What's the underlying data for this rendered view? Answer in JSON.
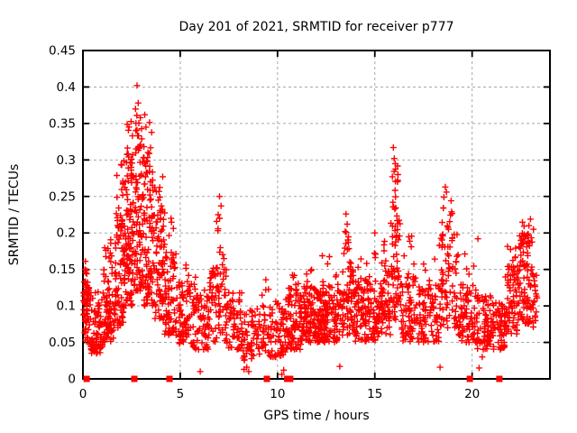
{
  "chart_data": {
    "type": "scatter",
    "title": "Day 201 of 2021, SRMTID for receiver p777",
    "xlabel": "GPS time / hours",
    "ylabel": "SRMTID / TECUs",
    "xlim": [
      0,
      24
    ],
    "ylim": [
      0,
      0.45
    ],
    "x_ticks": {
      "values": [
        0,
        5,
        10,
        15,
        20
      ],
      "labels": [
        "0",
        "5",
        "10",
        "15",
        "20"
      ]
    },
    "y_ticks": {
      "values": [
        0,
        0.05,
        0.1,
        0.15,
        0.2,
        0.25,
        0.3,
        0.35,
        0.4,
        0.45
      ],
      "labels": [
        "0",
        "0.05",
        "0.1",
        "0.15",
        "0.2",
        "0.25",
        "0.3",
        "0.35",
        "0.4",
        "0.45"
      ]
    },
    "grid": {
      "show": true,
      "style": "dashed",
      "axes": "both"
    },
    "legend_position": "none",
    "colors": {
      "marker": "#ff0000",
      "grid": "#a8a8a8",
      "axis": "#000000",
      "background": "#ffffff",
      "text": "#000000"
    },
    "series": [
      {
        "name": "SRMTID",
        "marker": "plus",
        "color": "#ff0000",
        "seed": 20212001,
        "cluster_bands_format": [
          "x_start",
          "x_end",
          "count",
          "y_min",
          "y_max",
          "skew_exponent"
        ],
        "cluster_bands": [
          [
            0.02,
            0.35,
            55,
            0.045,
            0.135,
            1.0
          ],
          [
            0.05,
            0.25,
            6,
            0.135,
            0.165,
            1.0
          ],
          [
            0.35,
            1.05,
            75,
            0.035,
            0.12,
            1.2
          ],
          [
            1.05,
            1.65,
            70,
            0.05,
            0.155,
            1.2
          ],
          [
            1.1,
            1.6,
            10,
            0.155,
            0.195,
            1.0
          ],
          [
            1.65,
            2.2,
            90,
            0.07,
            0.225,
            1.3
          ],
          [
            1.7,
            2.2,
            14,
            0.225,
            0.3,
            1.0
          ],
          [
            2.2,
            2.65,
            85,
            0.1,
            0.3,
            1.3
          ],
          [
            2.25,
            2.6,
            12,
            0.3,
            0.355,
            1.0
          ],
          [
            2.65,
            3.15,
            90,
            0.12,
            0.33,
            1.3
          ],
          [
            2.7,
            3.1,
            9,
            0.33,
            0.375,
            1.0
          ],
          [
            3.15,
            3.6,
            80,
            0.1,
            0.3,
            1.3
          ],
          [
            3.2,
            3.55,
            6,
            0.3,
            0.355,
            1.0
          ],
          [
            3.6,
            4.2,
            80,
            0.08,
            0.25,
            1.3
          ],
          [
            3.65,
            4.1,
            5,
            0.25,
            0.29,
            1.0
          ],
          [
            4.2,
            4.8,
            70,
            0.06,
            0.175,
            1.3
          ],
          [
            4.25,
            4.7,
            4,
            0.175,
            0.22,
            1.0
          ],
          [
            4.8,
            5.6,
            70,
            0.048,
            0.135,
            1.3
          ],
          [
            4.9,
            5.5,
            3,
            0.135,
            0.158,
            1.0
          ],
          [
            5.6,
            6.5,
            70,
            0.04,
            0.12,
            1.2
          ],
          [
            5.7,
            6.4,
            4,
            0.12,
            0.145,
            1.0
          ],
          [
            6.5,
            7.4,
            70,
            0.05,
            0.155,
            1.2
          ],
          [
            6.85,
            7.25,
            9,
            0.155,
            0.225,
            1.0
          ],
          [
            7.4,
            8.2,
            60,
            0.04,
            0.12,
            1.2
          ],
          [
            8.2,
            9.0,
            48,
            0.025,
            0.1,
            1.2
          ],
          [
            9.0,
            9.7,
            42,
            0.03,
            0.105,
            1.2
          ],
          [
            9.2,
            9.6,
            4,
            0.105,
            0.14,
            1.0
          ],
          [
            9.7,
            10.4,
            50,
            0.03,
            0.11,
            1.2
          ],
          [
            10.4,
            11.2,
            85,
            0.04,
            0.125,
            1.2
          ],
          [
            10.5,
            11.1,
            5,
            0.125,
            0.15,
            1.0
          ],
          [
            11.2,
            12.2,
            120,
            0.05,
            0.125,
            1.2
          ],
          [
            11.3,
            12.1,
            7,
            0.125,
            0.165,
            1.0
          ],
          [
            12.2,
            13.25,
            120,
            0.05,
            0.13,
            1.2
          ],
          [
            12.3,
            13.1,
            6,
            0.13,
            0.17,
            1.0
          ],
          [
            13.3,
            13.9,
            62,
            0.06,
            0.16,
            1.2
          ],
          [
            13.4,
            13.8,
            10,
            0.16,
            0.215,
            1.0
          ],
          [
            13.9,
            15.2,
            130,
            0.05,
            0.135,
            1.2
          ],
          [
            14.0,
            15.1,
            9,
            0.135,
            0.18,
            1.0
          ],
          [
            15.2,
            15.8,
            60,
            0.06,
            0.15,
            1.2
          ],
          [
            15.3,
            15.75,
            6,
            0.15,
            0.19,
            1.0
          ],
          [
            15.8,
            16.3,
            58,
            0.08,
            0.24,
            1.2
          ],
          [
            15.85,
            16.2,
            10,
            0.24,
            0.3,
            1.0
          ],
          [
            16.3,
            17.3,
            80,
            0.05,
            0.14,
            1.2
          ],
          [
            16.5,
            17.1,
            7,
            0.14,
            0.2,
            1.0
          ],
          [
            17.3,
            18.3,
            80,
            0.05,
            0.13,
            1.2
          ],
          [
            17.4,
            18.2,
            4,
            0.13,
            0.165,
            1.0
          ],
          [
            18.3,
            19.3,
            82,
            0.07,
            0.2,
            1.2
          ],
          [
            18.45,
            19.15,
            10,
            0.2,
            0.24,
            1.0
          ],
          [
            19.3,
            20.2,
            78,
            0.05,
            0.13,
            1.2
          ],
          [
            19.4,
            20.1,
            4,
            0.13,
            0.185,
            1.0
          ],
          [
            20.2,
            21.0,
            70,
            0.04,
            0.115,
            1.2
          ],
          [
            21.0,
            21.7,
            60,
            0.04,
            0.105,
            1.2
          ],
          [
            21.7,
            22.4,
            72,
            0.06,
            0.155,
            1.2
          ],
          [
            21.8,
            22.35,
            6,
            0.155,
            0.185,
            1.0
          ],
          [
            22.4,
            23.1,
            82,
            0.075,
            0.2,
            1.1
          ],
          [
            22.5,
            23.05,
            8,
            0.185,
            0.215,
            1.0
          ],
          [
            23.1,
            23.35,
            22,
            0.07,
            0.15,
            1.1
          ]
        ],
        "notable_points": [
          [
            2.78,
            0.402
          ],
          [
            2.84,
            0.378
          ],
          [
            2.95,
            0.358
          ],
          [
            3.18,
            0.362
          ],
          [
            3.24,
            0.345
          ],
          [
            6.03,
            0.01
          ],
          [
            7.02,
            0.25
          ],
          [
            7.1,
            0.237
          ],
          [
            6.95,
            0.225
          ],
          [
            8.28,
            0.013
          ],
          [
            8.42,
            0.016
          ],
          [
            8.52,
            0.01
          ],
          [
            10.22,
            0.006
          ],
          [
            10.32,
            0.012
          ],
          [
            13.2,
            0.017
          ],
          [
            13.52,
            0.226
          ],
          [
            13.58,
            0.212
          ],
          [
            13.48,
            0.202
          ],
          [
            15.0,
            0.2
          ],
          [
            15.95,
            0.317
          ],
          [
            16.0,
            0.302
          ],
          [
            16.05,
            0.295
          ],
          [
            15.9,
            0.277
          ],
          [
            18.35,
            0.016
          ],
          [
            18.62,
            0.263
          ],
          [
            18.68,
            0.256
          ],
          [
            18.55,
            0.249
          ],
          [
            18.92,
            0.244
          ],
          [
            20.3,
            0.192
          ],
          [
            20.36,
            0.015
          ],
          [
            20.52,
            0.03
          ],
          [
            23.0,
            0.219
          ],
          [
            22.92,
            0.21
          ],
          [
            23.15,
            0.205
          ]
        ]
      },
      {
        "name": "zero flags",
        "marker": "filled-square",
        "color": "#ff0000",
        "y": 0,
        "x_values": [
          0.19,
          2.64,
          4.45,
          9.45,
          10.5,
          10.65,
          19.88,
          21.4
        ]
      }
    ]
  }
}
